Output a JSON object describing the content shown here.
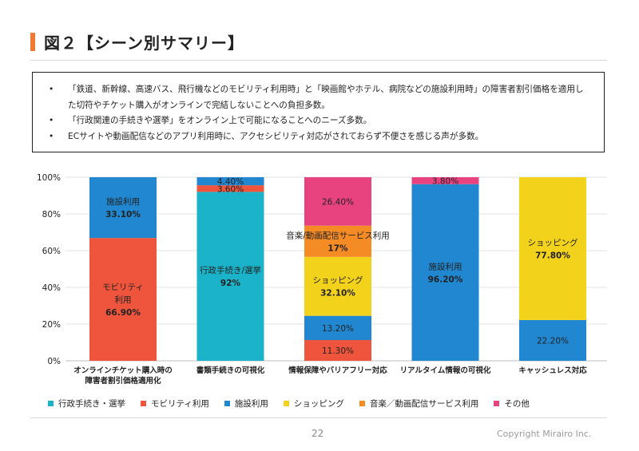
{
  "slide": {
    "title": "図２【シーン別サマリー】",
    "page_number": "22",
    "copyright": "Copyright Mirairo Inc.",
    "accent_color": "#ee7a35"
  },
  "summary": {
    "bullets": [
      "「鉄道、新幹線、高速バス、飛行機などのモビリティ利用時」と「映画館やホテル、病院などの施設利用時」の障害者割引価格を適用した切符やチケット購入がオンラインで完結しないことへの負担多数。",
      "「行政関連の手続きや選挙」をオンライン上で可能になることへのニーズ多数。",
      "ECサイトや動画配信などのアプリ利用時に、アクセシビリティ対応がされておらず不便さを感じる声が多数。"
    ]
  },
  "legend": [
    {
      "label": "行政手続き・選挙",
      "color": "#1ab3c9"
    },
    {
      "label": "モビリティ利用",
      "color": "#ee553c"
    },
    {
      "label": "施設利用",
      "color": "#2187d0"
    },
    {
      "label": "ショッピング",
      "color": "#f2d21a"
    },
    {
      "label": "音楽／動画配信サービス利用",
      "color": "#f58b25"
    },
    {
      "label": "その他",
      "color": "#e8437f"
    }
  ],
  "chart_data": {
    "type": "bar",
    "stacked": true,
    "percent": true,
    "ylim": [
      0,
      100
    ],
    "yticks": [
      "0%",
      "20%",
      "40%",
      "60%",
      "80%",
      "100%"
    ],
    "categories": [
      [
        "オンラインチケット購入時の",
        "障害者割引価格適用化"
      ],
      [
        "書類手続きの可視化"
      ],
      [
        "情報保障やバリアフリー対応"
      ],
      [
        "リアルタイム情報の可視化"
      ],
      [
        "キャッシュレス対応"
      ]
    ],
    "series": [
      {
        "name": "行政手続き・選挙",
        "color": "#1ab3c9",
        "values": [
          0,
          92,
          0,
          0,
          0
        ]
      },
      {
        "name": "モビリティ利用",
        "color": "#ee553c",
        "values": [
          66.9,
          3.6,
          11.3,
          0,
          0
        ]
      },
      {
        "name": "施設利用",
        "color": "#2187d0",
        "values": [
          33.1,
          4.4,
          13.2,
          96.2,
          22.2
        ]
      },
      {
        "name": "ショッピング",
        "color": "#f2d21a",
        "values": [
          0,
          0,
          32.1,
          0,
          77.8
        ]
      },
      {
        "name": "音楽／動画配信サービス利用",
        "color": "#f58b25",
        "values": [
          0,
          0,
          17,
          0,
          0
        ]
      },
      {
        "name": "その他",
        "color": "#e8437f",
        "values": [
          0,
          0,
          26.4,
          3.8,
          0
        ]
      }
    ],
    "data_labels": [
      {
        "bar": 0,
        "series": 1,
        "lines": [
          "モビリティ",
          "利用",
          "66.90%"
        ],
        "color": "#222222",
        "bold_last": true
      },
      {
        "bar": 0,
        "series": 2,
        "lines": [
          "施設利用",
          "33.10%"
        ],
        "color": "#222222",
        "bold_last": true
      },
      {
        "bar": 1,
        "series": 0,
        "lines": [
          "行政手続き/選挙",
          "92%"
        ],
        "color": "#222222",
        "bold_last": true
      },
      {
        "bar": 1,
        "series": 1,
        "lines": [
          "3.60%"
        ],
        "color": "#222222",
        "bold_last": false
      },
      {
        "bar": 1,
        "series": 2,
        "lines": [
          "4.40%"
        ],
        "color": "#222222",
        "bold_last": false
      },
      {
        "bar": 2,
        "series": 1,
        "lines": [
          "11.30%"
        ],
        "color": "#222222",
        "bold_last": false
      },
      {
        "bar": 2,
        "series": 2,
        "lines": [
          "13.20%"
        ],
        "color": "#222222",
        "bold_last": false
      },
      {
        "bar": 2,
        "series": 3,
        "lines": [
          "ショッピング",
          "32.10%"
        ],
        "color": "#222222",
        "bold_last": true
      },
      {
        "bar": 2,
        "series": 4,
        "lines": [
          "音楽/動画配信サービス利用",
          "17%"
        ],
        "color": "#222222",
        "bold_last": true
      },
      {
        "bar": 2,
        "series": 5,
        "lines": [
          "26.40%"
        ],
        "color": "#222222",
        "bold_last": false
      },
      {
        "bar": 3,
        "series": 2,
        "lines": [
          "施設利用",
          "96.20%"
        ],
        "color": "#222222",
        "bold_last": true
      },
      {
        "bar": 3,
        "series": 5,
        "lines": [
          "3.80%"
        ],
        "color": "#222222",
        "bold_last": false
      },
      {
        "bar": 4,
        "series": 2,
        "lines": [
          "22.20%"
        ],
        "color": "#222222",
        "bold_last": false
      },
      {
        "bar": 4,
        "series": 3,
        "lines": [
          "ショッピング",
          "77.80%"
        ],
        "color": "#222222",
        "bold_last": true
      }
    ]
  }
}
